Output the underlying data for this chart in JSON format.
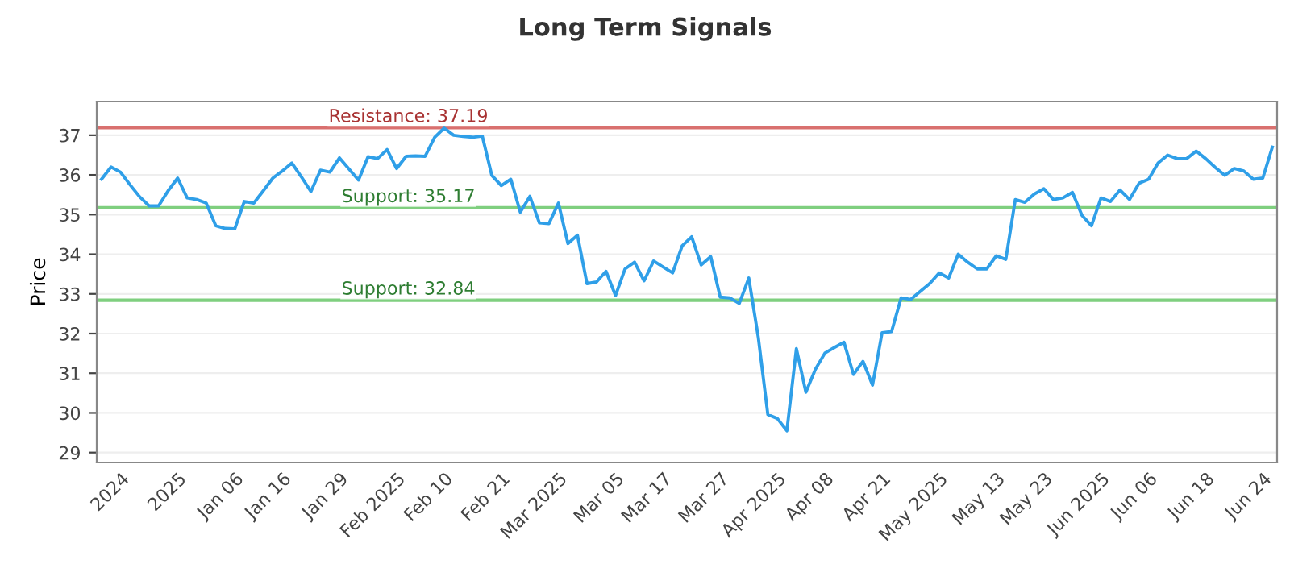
{
  "chart_data": {
    "type": "line",
    "title": "Long Term Signals",
    "ylabel": "Price",
    "categories": [
      null,
      null,
      "2024",
      null,
      null,
      null,
      null,
      null,
      "2025",
      null,
      null,
      null,
      null,
      null,
      "Jan 06",
      null,
      null,
      null,
      null,
      "Jan 16",
      null,
      null,
      null,
      null,
      null,
      "Jan 29",
      null,
      null,
      null,
      null,
      null,
      "Feb 2025",
      null,
      null,
      null,
      null,
      "Feb 10",
      null,
      null,
      null,
      null,
      null,
      "Feb 21",
      null,
      null,
      null,
      null,
      null,
      "Mar 2025",
      null,
      null,
      null,
      null,
      null,
      "Mar 05",
      null,
      null,
      null,
      null,
      "Mar 17",
      null,
      null,
      null,
      null,
      null,
      "Mar 27",
      null,
      null,
      null,
      null,
      null,
      "Apr 2025",
      null,
      null,
      null,
      null,
      "Apr 08",
      null,
      null,
      null,
      null,
      null,
      "Apr 21",
      null,
      null,
      null,
      null,
      null,
      "May 2025",
      null,
      null,
      null,
      null,
      null,
      "May 13",
      null,
      null,
      null,
      null,
      "May 23",
      null,
      null,
      null,
      null,
      null,
      "Jun 2025",
      null,
      null,
      null,
      null,
      "Jun 06",
      null,
      null,
      null,
      null,
      null,
      "Jun 18",
      null,
      null,
      null,
      null,
      null,
      "Jun 24",
      null
    ],
    "series": [
      {
        "color": "#2f9fe8",
        "values": [
          35.89,
          36.2,
          36.07,
          35.75,
          35.45,
          35.22,
          35.22,
          35.6,
          35.92,
          35.42,
          35.38,
          35.29,
          34.72,
          34.65,
          34.64,
          35.33,
          35.29,
          35.6,
          35.92,
          36.1,
          36.3,
          35.95,
          35.58,
          36.12,
          36.07,
          36.43,
          36.15,
          35.87,
          36.46,
          36.41,
          36.64,
          36.16,
          36.47,
          36.48,
          36.47,
          36.95,
          37.18,
          37.0,
          36.97,
          36.95,
          36.98,
          35.99,
          35.73,
          35.89,
          35.06,
          35.46,
          34.79,
          34.77,
          35.29,
          34.27,
          34.48,
          33.26,
          33.3,
          33.57,
          32.96,
          33.63,
          33.8,
          33.33,
          33.83,
          33.68,
          33.53,
          34.21,
          34.44,
          33.73,
          33.94,
          32.92,
          32.9,
          32.76,
          33.4,
          31.9,
          29.96,
          29.86,
          29.55,
          31.62,
          30.52,
          31.1,
          31.51,
          31.65,
          31.78,
          30.97,
          31.3,
          30.7,
          32.02,
          32.05,
          32.9,
          32.86,
          33.06,
          33.26,
          33.53,
          33.4,
          34.0,
          33.8,
          33.63,
          33.63,
          33.96,
          33.87,
          35.38,
          35.31,
          35.52,
          35.65,
          35.38,
          35.42,
          35.56,
          34.98,
          34.72,
          35.42,
          35.33,
          35.62,
          35.38,
          35.79,
          35.89,
          36.3,
          36.5,
          36.41,
          36.41,
          36.6,
          36.41,
          36.19,
          35.99,
          36.16,
          36.1,
          35.89,
          35.92,
          36.7
        ]
      }
    ],
    "ylim": [
      28.75,
      37.85
    ],
    "yticks": [
      29,
      30,
      31,
      32,
      33,
      34,
      35,
      36,
      37
    ],
    "grid": "y",
    "marker": "none",
    "line_style": "solid",
    "legend": false,
    "ref_lines": [
      {
        "axis": "y",
        "value": 37.19,
        "label": "Resistance: 37.19",
        "color": "#d9706f"
      },
      {
        "axis": "y",
        "value": 35.17,
        "label": "Support: 35.17",
        "color": "#7fcf7f"
      },
      {
        "axis": "y",
        "value": 32.84,
        "label": "Support: 32.84",
        "color": "#7fcf7f"
      }
    ]
  }
}
